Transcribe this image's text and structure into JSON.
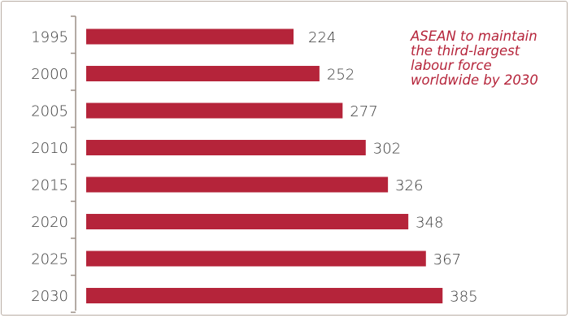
{
  "colors": {
    "bar": "#b5243a",
    "axis": "#9a8f87",
    "annotation": "#b5243a",
    "text": "#3a3a3a"
  },
  "chart_data": {
    "type": "bar",
    "orientation": "horizontal",
    "categories": [
      "1995",
      "2000",
      "2005",
      "2010",
      "2015",
      "2020",
      "2025",
      "2030"
    ],
    "values": [
      224,
      252,
      277,
      302,
      326,
      348,
      367,
      385
    ],
    "value_labels": [
      "224",
      "252",
      "277",
      "302",
      "326",
      "348",
      "367",
      "385"
    ],
    "title": "",
    "xlabel": "",
    "ylabel": "",
    "xlim": [
      0,
      440
    ],
    "grid": false,
    "legend": "none",
    "annotation": {
      "lines": [
        "ASEAN to maintain",
        "the third-largest",
        "labour force",
        "worldwide by 2030"
      ]
    }
  }
}
